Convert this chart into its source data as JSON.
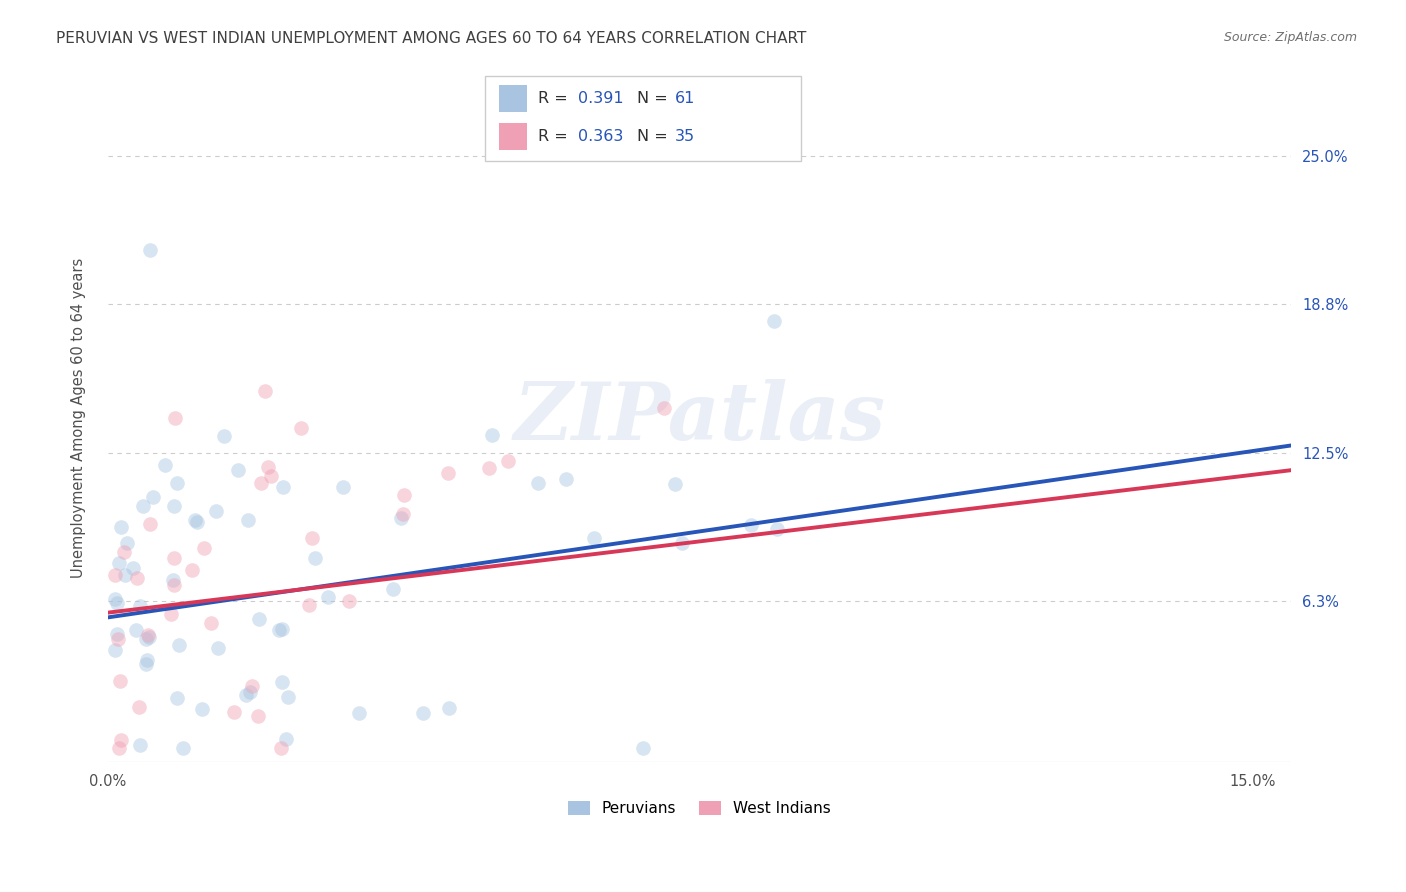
{
  "title": "PERUVIAN VS WEST INDIAN UNEMPLOYMENT AMONG AGES 60 TO 64 YEARS CORRELATION CHART",
  "source": "Source: ZipAtlas.com",
  "ylabel": "Unemployment Among Ages 60 to 64 years",
  "xlim": [
    0.0,
    0.155
  ],
  "ylim": [
    -0.005,
    0.285
  ],
  "ytick_vals": [
    0.063,
    0.125,
    0.188,
    0.25
  ],
  "ytick_labels": [
    "6.3%",
    "12.5%",
    "18.8%",
    "25.0%"
  ],
  "xticklabels": [
    "0.0%",
    "15.0%"
  ],
  "xtick_vals": [
    0.0,
    0.15
  ],
  "peruvian_color": "#a8c4e0",
  "west_indian_color": "#f0a0b4",
  "peruvian_line_color": "#2855b8",
  "west_indian_line_color": "#d83858",
  "R_peruvian": "0.391",
  "N_peruvian": "61",
  "R_west_indian": "0.363",
  "N_west_indian": "35",
  "legend_label_1": "Peruvians",
  "legend_label_2": "West Indians",
  "watermark": "ZIPatlas",
  "trend_peru_start_y": 0.056,
  "trend_peru_end_y": 0.126,
  "trend_west_start_y": 0.058,
  "trend_west_end_y": 0.116,
  "background_color": "#ffffff",
  "grid_color": "#cccccc",
  "title_color": "#404040",
  "dot_size": 110,
  "dot_alpha": 0.45,
  "line_width": 2.8
}
